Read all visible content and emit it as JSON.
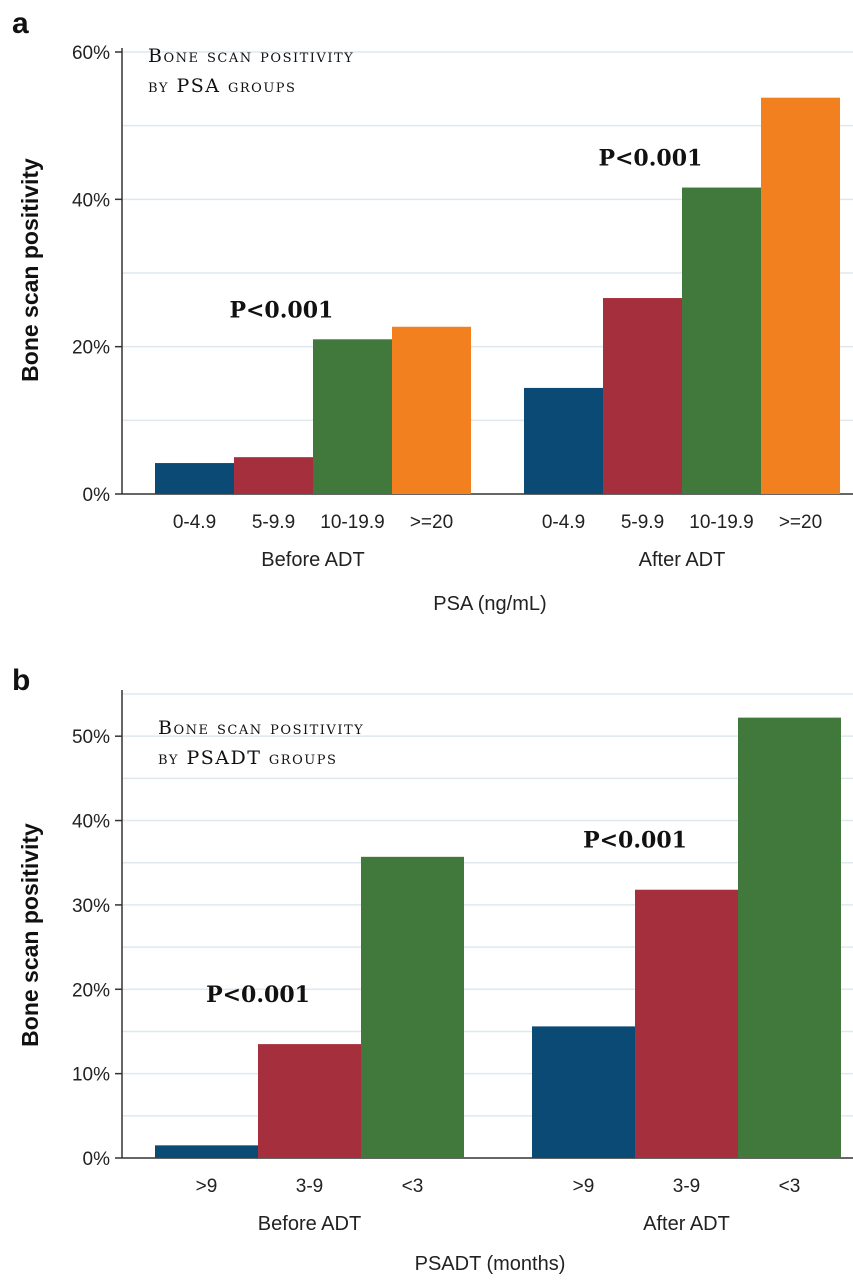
{
  "colors": {
    "blue": "#0a4a75",
    "red": "#a52f3c",
    "green": "#41783c",
    "orange": "#f2801e"
  },
  "chart_data": [
    {
      "panel": "a",
      "type": "bar",
      "title": "Bone scan positivity by PSA groups",
      "ylabel": "Bone scan positivity",
      "xlabel": "PSA (ng/mL)",
      "ylim": [
        0,
        60
      ],
      "yticks": [
        "0%",
        "20%",
        "40%",
        "60%"
      ],
      "grid": true,
      "groups": [
        {
          "label": "Before ADT",
          "annotation": "P<0.001",
          "bars": [
            {
              "category": "0-4.9",
              "value": 4.2,
              "color": "blue"
            },
            {
              "category": "5-9.9",
              "value": 5.0,
              "color": "red"
            },
            {
              "category": "10-19.9",
              "value": 21.0,
              "color": "green"
            },
            {
              "category": ">=20",
              "value": 22.7,
              "color": "orange"
            }
          ]
        },
        {
          "label": "After ADT",
          "annotation": "P<0.001",
          "bars": [
            {
              "category": "0-4.9",
              "value": 14.4,
              "color": "blue"
            },
            {
              "category": "5-9.9",
              "value": 26.6,
              "color": "red"
            },
            {
              "category": "10-19.9",
              "value": 41.6,
              "color": "green"
            },
            {
              "category": ">=20",
              "value": 53.8,
              "color": "orange"
            }
          ]
        }
      ]
    },
    {
      "panel": "b",
      "type": "bar",
      "title": "Bone scan positivity by PSADT groups",
      "ylabel": "Bone scan positivity",
      "xlabel": "PSADT (months)",
      "ylim": [
        0,
        55
      ],
      "yticks": [
        "0%",
        "10%",
        "20%",
        "30%",
        "40%",
        "50%"
      ],
      "grid": true,
      "groups": [
        {
          "label": "Before ADT",
          "annotation": "P<0.001",
          "bars": [
            {
              "category": ">9",
              "value": 1.5,
              "color": "blue"
            },
            {
              "category": "3-9",
              "value": 13.5,
              "color": "red"
            },
            {
              "category": "<3",
              "value": 35.7,
              "color": "green"
            }
          ]
        },
        {
          "label": "After ADT",
          "annotation": "P<0.001",
          "bars": [
            {
              "category": ">9",
              "value": 15.6,
              "color": "blue"
            },
            {
              "category": "3-9",
              "value": 31.8,
              "color": "red"
            },
            {
              "category": "<3",
              "value": 52.2,
              "color": "green"
            }
          ]
        }
      ]
    }
  ]
}
